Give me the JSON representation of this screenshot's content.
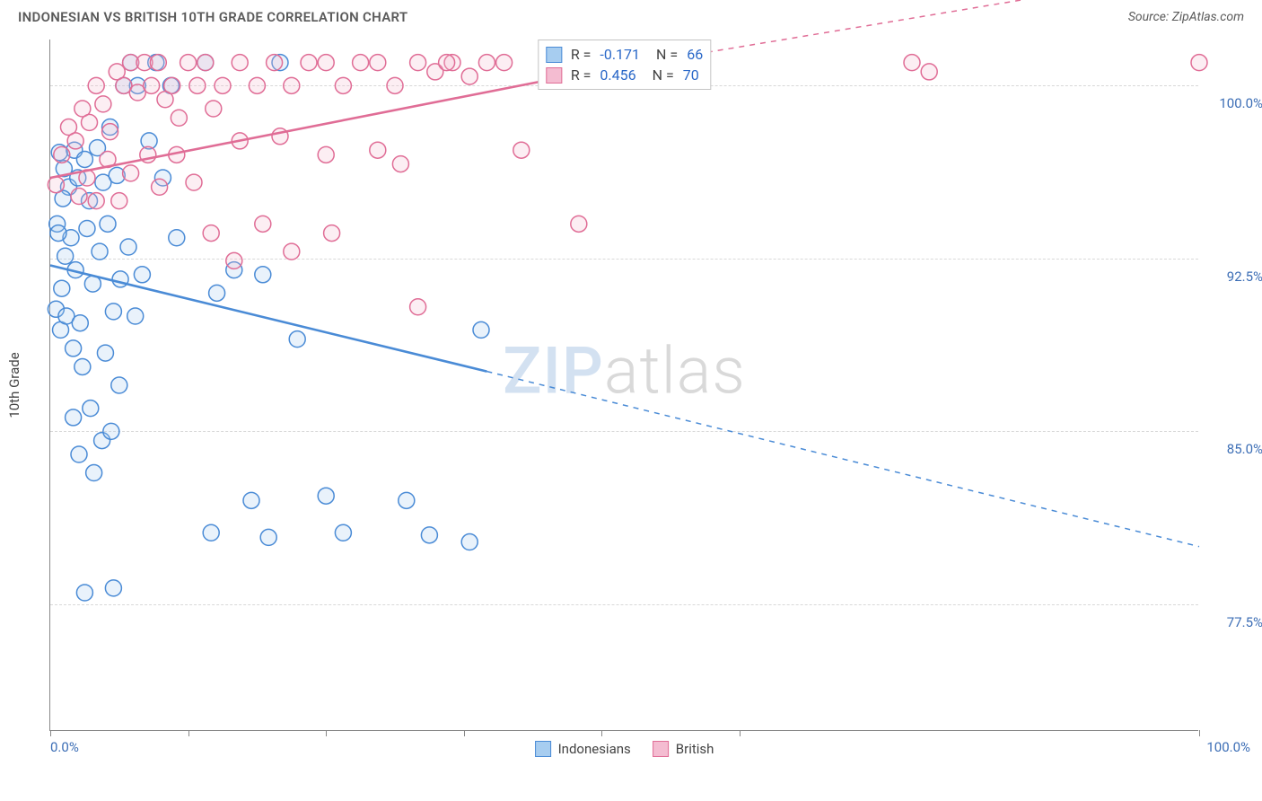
{
  "title": "INDONESIAN VS BRITISH 10TH GRADE CORRELATION CHART",
  "source": "Source: ZipAtlas.com",
  "ylabel": "10th Grade",
  "watermark": {
    "part1": "ZIP",
    "part2": "atlas"
  },
  "chart": {
    "type": "scatter",
    "xlim": [
      0,
      100
    ],
    "ylim": [
      72,
      102
    ],
    "x_tick_label_min": "0.0%",
    "x_tick_label_max": "100.0%",
    "x_tick_positions": [
      0,
      12,
      24,
      36,
      48,
      60,
      100
    ],
    "y_ticks": [
      {
        "value": 77.5,
        "label": "77.5%"
      },
      {
        "value": 85.0,
        "label": "85.0%"
      },
      {
        "value": 92.5,
        "label": "92.5%"
      },
      {
        "value": 100.0,
        "label": "100.0%"
      }
    ],
    "grid_color": "#d8d8d8",
    "background_color": "#ffffff",
    "marker_radius": 9,
    "marker_stroke_width": 1.5,
    "marker_fill_opacity": 0.25,
    "trendline_width": 2.6,
    "series": [
      {
        "name": "Indonesians",
        "color_stroke": "#4a8bd6",
        "color_fill": "#a7cdf0",
        "R": "-0.171",
        "N": "66",
        "trend": {
          "x1": 0,
          "y1": 92.2,
          "x2": 38,
          "y2": 87.6,
          "dash_x2": 100,
          "dash_y2": 80.0
        },
        "points": [
          [
            0.8,
            97.1
          ],
          [
            1.2,
            96.4
          ],
          [
            1.6,
            95.6
          ],
          [
            2.1,
            97.2
          ],
          [
            2.4,
            96.0
          ],
          [
            0.6,
            94.0
          ],
          [
            1.0,
            91.2
          ],
          [
            1.3,
            92.6
          ],
          [
            1.8,
            93.4
          ],
          [
            2.2,
            92.0
          ],
          [
            0.5,
            90.3
          ],
          [
            0.9,
            89.4
          ],
          [
            1.4,
            90.0
          ],
          [
            2.0,
            88.6
          ],
          [
            2.6,
            89.7
          ],
          [
            0.7,
            93.6
          ],
          [
            1.1,
            95.1
          ],
          [
            3.0,
            96.8
          ],
          [
            3.4,
            95.0
          ],
          [
            4.1,
            97.3
          ],
          [
            4.6,
            95.8
          ],
          [
            5.2,
            98.2
          ],
          [
            5.8,
            96.1
          ],
          [
            6.4,
            100.0
          ],
          [
            7.0,
            101.0
          ],
          [
            7.6,
            100.0
          ],
          [
            3.2,
            93.8
          ],
          [
            3.7,
            91.4
          ],
          [
            4.3,
            92.8
          ],
          [
            5.0,
            94.0
          ],
          [
            5.5,
            90.2
          ],
          [
            6.1,
            91.6
          ],
          [
            6.8,
            93.0
          ],
          [
            7.4,
            90.0
          ],
          [
            8.0,
            91.8
          ],
          [
            8.6,
            97.6
          ],
          [
            9.2,
            101.0
          ],
          [
            9.8,
            96.0
          ],
          [
            10.5,
            100.0
          ],
          [
            11.0,
            93.4
          ],
          [
            2.8,
            87.8
          ],
          [
            3.5,
            86.0
          ],
          [
            4.8,
            88.4
          ],
          [
            6.0,
            87.0
          ],
          [
            2.0,
            85.6
          ],
          [
            2.5,
            84.0
          ],
          [
            3.8,
            83.2
          ],
          [
            4.5,
            84.6
          ],
          [
            5.3,
            85.0
          ],
          [
            13.5,
            101.0
          ],
          [
            14.5,
            91.0
          ],
          [
            16.0,
            92.0
          ],
          [
            18.5,
            91.8
          ],
          [
            20.0,
            101.0
          ],
          [
            21.5,
            89.0
          ],
          [
            17.5,
            82.0
          ],
          [
            14.0,
            80.6
          ],
          [
            19.0,
            80.4
          ],
          [
            24.0,
            82.2
          ],
          [
            25.5,
            80.6
          ],
          [
            31.0,
            82.0
          ],
          [
            33.0,
            80.5
          ],
          [
            36.5,
            80.2
          ],
          [
            37.5,
            89.4
          ],
          [
            3.0,
            78.0
          ],
          [
            5.5,
            78.2
          ]
        ]
      },
      {
        "name": "British",
        "color_stroke": "#e06d96",
        "color_fill": "#f4bcd1",
        "R": "0.456",
        "N": "70",
        "trend": {
          "x1": 0,
          "y1": 96.0,
          "x2": 47,
          "y2": 100.6,
          "dash_x2": 100,
          "dash_y2": 105
        },
        "points": [
          [
            0.5,
            95.7
          ],
          [
            1.0,
            97.0
          ],
          [
            1.6,
            98.2
          ],
          [
            2.2,
            97.6
          ],
          [
            2.8,
            99.0
          ],
          [
            3.4,
            98.4
          ],
          [
            4.0,
            100.0
          ],
          [
            4.6,
            99.2
          ],
          [
            5.2,
            98.0
          ],
          [
            5.8,
            100.6
          ],
          [
            6.4,
            100.0
          ],
          [
            7.0,
            101.0
          ],
          [
            7.6,
            99.7
          ],
          [
            8.2,
            101.0
          ],
          [
            8.8,
            100.0
          ],
          [
            9.4,
            101.0
          ],
          [
            10.0,
            99.4
          ],
          [
            10.6,
            100.0
          ],
          [
            11.2,
            98.6
          ],
          [
            12.0,
            101.0
          ],
          [
            12.8,
            100.0
          ],
          [
            13.5,
            101.0
          ],
          [
            14.2,
            99.0
          ],
          [
            2.5,
            95.2
          ],
          [
            3.2,
            96.0
          ],
          [
            4.0,
            95.0
          ],
          [
            5.0,
            96.8
          ],
          [
            6.0,
            95.0
          ],
          [
            7.0,
            96.2
          ],
          [
            8.5,
            97.0
          ],
          [
            9.5,
            95.6
          ],
          [
            11.0,
            97.0
          ],
          [
            12.5,
            95.8
          ],
          [
            15.0,
            100.0
          ],
          [
            16.5,
            101.0
          ],
          [
            18.0,
            100.0
          ],
          [
            19.5,
            101.0
          ],
          [
            21.0,
            100.0
          ],
          [
            22.5,
            101.0
          ],
          [
            24.0,
            101.0
          ],
          [
            25.5,
            100.0
          ],
          [
            27.0,
            101.0
          ],
          [
            28.5,
            101.0
          ],
          [
            30.0,
            100.0
          ],
          [
            32.0,
            101.0
          ],
          [
            33.5,
            100.6
          ],
          [
            35.0,
            101.0
          ],
          [
            36.5,
            100.4
          ],
          [
            38.0,
            101.0
          ],
          [
            14.0,
            93.6
          ],
          [
            16.0,
            92.4
          ],
          [
            18.5,
            94.0
          ],
          [
            21.0,
            92.8
          ],
          [
            24.5,
            93.6
          ],
          [
            16.5,
            97.6
          ],
          [
            20.0,
            97.8
          ],
          [
            24.0,
            97.0
          ],
          [
            28.5,
            97.2
          ],
          [
            30.5,
            96.6
          ],
          [
            32.0,
            90.4
          ],
          [
            34.5,
            101.0
          ],
          [
            39.5,
            101.0
          ],
          [
            41.0,
            97.2
          ],
          [
            44.0,
            101.0
          ],
          [
            46.0,
            94.0
          ],
          [
            46.5,
            101.0
          ],
          [
            47.0,
            100.4
          ],
          [
            75.0,
            101.0
          ],
          [
            76.5,
            100.6
          ],
          [
            100.0,
            101.0
          ]
        ]
      }
    ]
  },
  "legend": {
    "items": [
      {
        "name": "Indonesians",
        "color_stroke": "#4a8bd6",
        "color_fill": "#a7cdf0"
      },
      {
        "name": "British",
        "color_stroke": "#e06d96",
        "color_fill": "#f4bcd1"
      }
    ]
  }
}
